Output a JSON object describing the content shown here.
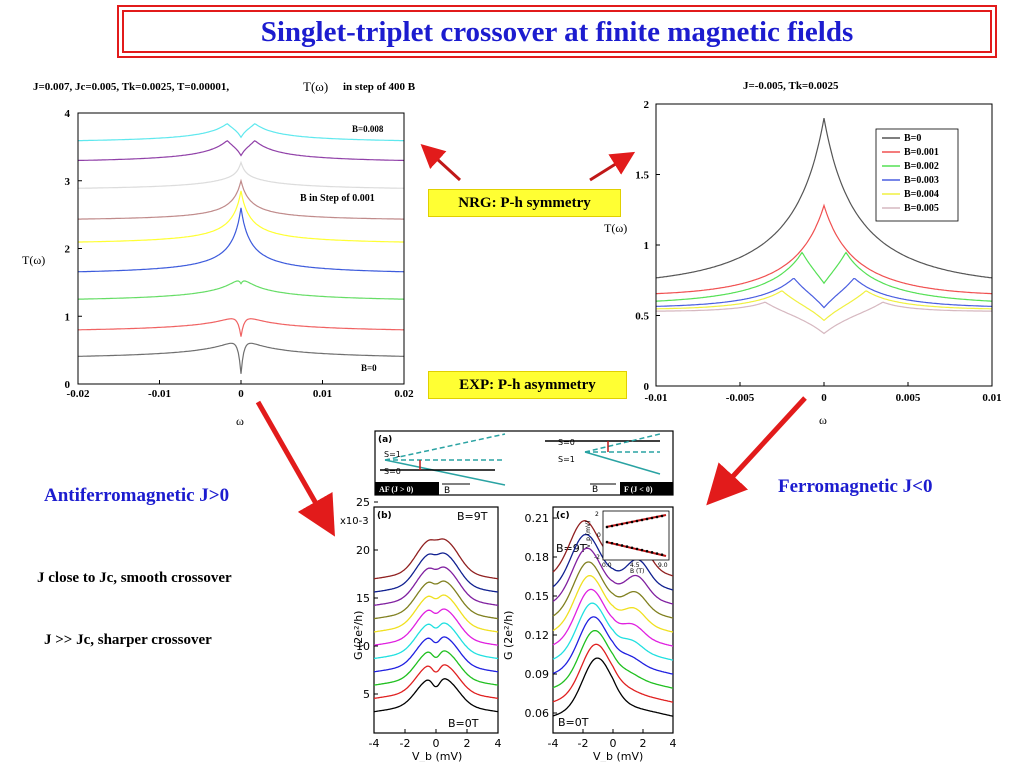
{
  "title": "Singlet-triplet crossover at finite magnetic fields",
  "left_caption": "J=0.007,  Jc=0.005, Tk=0.0025, T=0.00001,",
  "left_caption_tomega": "T(ω)",
  "left_caption_step": "in step of 400 B",
  "right_caption": "J=-0.005, Tk=0.0025",
  "nrg_label": "NRG: P-h symmetry",
  "exp_label": "EXP: P-h asymmetry",
  "afm_label": "Antiferromagnetic J>0",
  "fm_label": "Ferromagnetic J<0",
  "note1": "J close to Jc, smooth crossover",
  "note2": "J >> Jc, sharper crossover",
  "colors": {
    "title_blue": "#1c1ccf",
    "arrow_red": "#e21b1b",
    "label_bg": "#ffff33"
  },
  "chart_data": [
    {
      "id": "left-nrg",
      "type": "line",
      "xlabel": "ω",
      "ylabel": "T(ω)",
      "xlim": [
        -0.02,
        0.02
      ],
      "ylim": [
        0,
        4
      ],
      "xticks": [
        "-0.02",
        "-0.01",
        "0",
        "0.01",
        "0.02"
      ],
      "yticks": [
        "0",
        "1",
        "2",
        "3",
        "4"
      ],
      "annotation_top": "B=0.008",
      "annotation_bottom": "B=0",
      "annotation_step": "B  in Step of 0.001",
      "series": [
        {
          "offset": 0.35,
          "peak": 0.35,
          "kind": "dip-deep",
          "color": "#6f6f6f"
        },
        {
          "offset": 0.75,
          "peak": 0.3,
          "kind": "dip-red",
          "color": "#f06262"
        },
        {
          "offset": 1.2,
          "peak": 0.35,
          "kind": "dip-small",
          "color": "#66dd66"
        },
        {
          "offset": 1.6,
          "peak": 1.0,
          "kind": "peak",
          "color": "#3d5bdc"
        },
        {
          "offset": 2.05,
          "peak": 0.8,
          "kind": "peak",
          "color": "#ffff33"
        },
        {
          "offset": 2.4,
          "peak": 0.6,
          "kind": "peak",
          "color": "#c08b8b"
        },
        {
          "offset": 2.85,
          "peak": 0.4,
          "kind": "peak-small",
          "color": "#dcdcdc"
        },
        {
          "offset": 3.25,
          "peak": 0.35,
          "kind": "double",
          "color": "#9040a8"
        },
        {
          "offset": 3.55,
          "peak": 0.3,
          "kind": "double",
          "color": "#5ee8ee"
        }
      ]
    },
    {
      "id": "right-nrg",
      "type": "line",
      "xlabel": "ω",
      "ylabel": "T(ω)",
      "xlim": [
        -0.01,
        0.01
      ],
      "ylim": [
        0,
        2
      ],
      "xticks": [
        "-0.01",
        "-0.005",
        "0",
        "0.005",
        "0.01"
      ],
      "yticks": [
        "0",
        "0.5",
        "1",
        "1.5",
        "2"
      ],
      "legend": "top-right",
      "series": [
        {
          "name": "B=0",
          "color": "#555555",
          "center": 1.9,
          "split": 0
        },
        {
          "name": "B=0.001",
          "color": "#f05050",
          "center": 1.28,
          "split": 0
        },
        {
          "name": "B=0.002",
          "color": "#55e055",
          "center": 0.9,
          "split": 0.0013,
          "side": 0.95
        },
        {
          "name": "B=0.003",
          "color": "#4a5ee0",
          "center": 0.69,
          "split": 0.0018,
          "side": 0.77
        },
        {
          "name": "B=0.004",
          "color": "#f0f040",
          "center": 0.58,
          "split": 0.0025,
          "side": 0.68
        },
        {
          "name": "B=0.005",
          "color": "#d6b8c0",
          "center": 0.46,
          "split": 0.0035,
          "side": 0.6
        }
      ]
    },
    {
      "id": "exp-b",
      "type": "line",
      "panel": "(b)",
      "xlabel": "V_b (mV)",
      "ylabel": "G (2e²/h)",
      "scale": "x10-3",
      "xticks": [
        "-4",
        "-2",
        "0",
        "2",
        "4"
      ],
      "yticks": [
        "5",
        "10",
        "15",
        "20",
        "25"
      ],
      "annotation_top": "B=9T",
      "annotation_bottom": "B=0T"
    },
    {
      "id": "exp-c",
      "type": "line",
      "panel": "(c)",
      "xlabel": "V_b (mV)",
      "ylabel": "G (2e²/h)",
      "xticks": [
        "-4",
        "-2",
        "0",
        "2",
        "4"
      ],
      "yticks": [
        "0.06",
        "0.09",
        "0.12",
        "0.15",
        "0.18",
        "0.21"
      ],
      "annotation_top": "B=9T",
      "annotation_bottom": "B=0T",
      "inset_xlabel": "B (T)",
      "inset_ylabel": "V_p (mV)",
      "inset_xticks": [
        "0.0",
        "4.5",
        "9.0"
      ],
      "inset_yticks": [
        "-2",
        "0",
        "2"
      ]
    },
    {
      "id": "exp-a",
      "type": "diagram",
      "panel": "(a)",
      "labels_left": [
        "S=1",
        "S=0"
      ],
      "labels_right": [
        "S=0",
        "S=1"
      ],
      "tag_left": "AF (J > 0)",
      "tag_right": "F (J < 0)",
      "axis": "B"
    }
  ]
}
